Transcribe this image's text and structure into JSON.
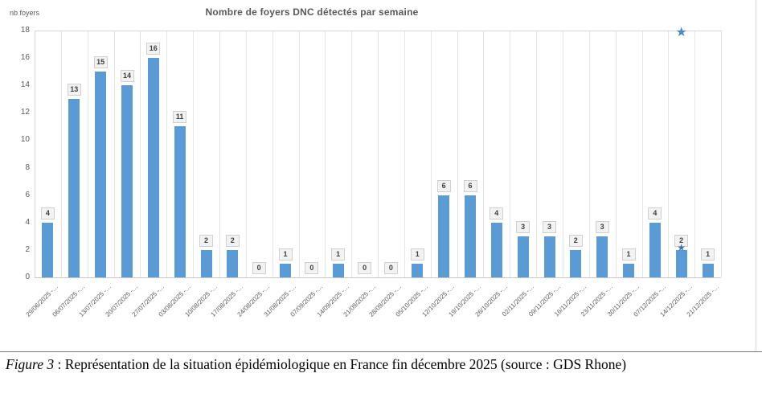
{
  "figure": {
    "title": "Nombre de foyers DNC détectés  par semaine",
    "y_axis_unit": "nb foyers",
    "caption": {
      "prefix": "Figure 3",
      "text": " : Représentation de la situation épidémiologique en France fin décembre 2025 (source : GDS Rhone)"
    }
  },
  "chart_data": {
    "type": "bar",
    "title": "Nombre de foyers DNC détectés  par semaine",
    "ylabel": "nb foyers",
    "xlabel": "",
    "ylim": [
      0,
      18
    ],
    "ytick_step": 2,
    "grid": "vertical-category-lines",
    "legend": "none",
    "value_labels_shown": true,
    "categories": [
      "29/06/2025 -…",
      "06/07/2025 -…",
      "13/07/2025 -…",
      "20/07/2025 -…",
      "27/07/2025 -…",
      "03/08/2025 -…",
      "10/08/2025 -…",
      "17/08/2025 -…",
      "24/08/2025 -…",
      "31/08/2025 -…",
      "07/09/2025 -…",
      "14/09/2025 -…",
      "21/09/2025 -…",
      "28/09/2025 -…",
      "05/10/2025 -…",
      "12/10/2025 -…",
      "19/10/2025 -…",
      "26/10/2025 -…",
      "02/11/2025 -…",
      "09/11/2025 -…",
      "16/11/2025 -…",
      "23/11/2025 -…",
      "30/11/2025 -…",
      "07/12/2025 -…",
      "14/12/2025 -…",
      "21/12/2025 -…"
    ],
    "values": [
      4,
      13,
      15,
      14,
      16,
      11,
      2,
      2,
      0,
      1,
      0,
      1,
      0,
      0,
      1,
      6,
      6,
      4,
      3,
      3,
      2,
      3,
      1,
      4,
      2,
      1
    ],
    "markers": [
      {
        "shape": "star",
        "column": "14/12/2025 -…",
        "col_index": 24,
        "value": 17.85,
        "color": "#4a87c8",
        "size": 16
      },
      {
        "shape": "star",
        "column": "14/12/2025 -…",
        "col_index": 24,
        "value": 2.2,
        "color": "#3f74ae",
        "size": 12
      }
    ],
    "colors": {
      "bar": "#5b9bd5",
      "gridline": "#e3e3e3",
      "plot_border": "#d6d6d6",
      "value_label_bg": "#f2f2f2",
      "value_label_border": "#d0d0d0",
      "value_label_text": "#404040",
      "axis_text": "#595959",
      "title_text": "#595959"
    }
  }
}
